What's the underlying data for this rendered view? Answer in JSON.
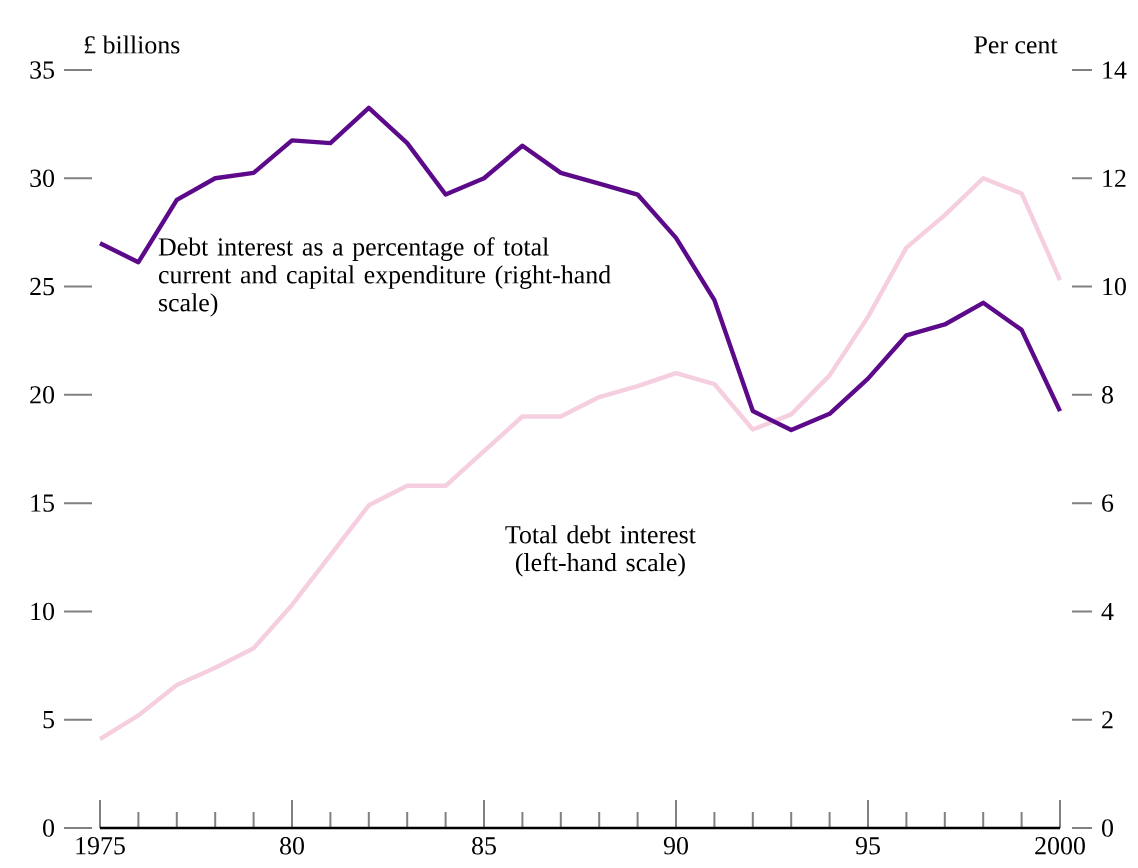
{
  "chart_data": {
    "type": "line",
    "ylabel": "£ billions",
    "y2label": "Per cent",
    "x": [
      1975,
      1976,
      1977,
      1978,
      1979,
      1980,
      1981,
      1982,
      1983,
      1984,
      1985,
      1986,
      1987,
      1988,
      1989,
      1990,
      1991,
      1992,
      1993,
      1994,
      1995,
      1996,
      1997,
      1998,
      1999,
      2000
    ],
    "series": [
      {
        "name": "Total debt interest (left-hand scale)",
        "color": "#f5cfe0",
        "values": [
          4.1,
          5.2,
          6.6,
          7.4,
          8.3,
          10.3,
          12.6,
          14.9,
          15.8,
          15.8,
          17.4,
          19.0,
          19.0,
          19.9,
          20.4,
          21.0,
          20.5,
          18.4,
          19.1,
          20.9,
          23.6,
          26.8,
          28.3,
          30.0,
          29.3,
          25.3
        ]
      },
      {
        "name": "Debt interest as a percentage of total current and capital expenditure (right-hand scale)",
        "color": "#5c0a8a",
        "axis": "y2",
        "values": [
          10.8,
          10.45,
          11.6,
          12.0,
          12.1,
          12.7,
          12.65,
          13.3,
          12.65,
          11.7,
          12.0,
          12.6,
          12.1,
          11.9,
          11.7,
          10.9,
          9.75,
          7.7,
          7.35,
          7.65,
          8.3,
          9.1,
          9.3,
          9.7,
          9.2,
          7.7
        ]
      }
    ],
    "xlim": [
      1975,
      2000
    ],
    "xticks": [
      1975,
      {
        "value": 1976,
        "label": null
      },
      {
        "value": 1977,
        "label": null
      },
      {
        "value": 1978,
        "label": null
      },
      {
        "value": 1979,
        "label": null
      },
      {
        "value": 1980,
        "label": "80"
      },
      {
        "value": 1981,
        "label": null
      },
      {
        "value": 1982,
        "label": null
      },
      {
        "value": 1983,
        "label": null
      },
      {
        "value": 1984,
        "label": null
      },
      {
        "value": 1985,
        "label": "85"
      },
      {
        "value": 1986,
        "label": null
      },
      {
        "value": 1987,
        "label": null
      },
      {
        "value": 1988,
        "label": null
      },
      {
        "value": 1989,
        "label": null
      },
      {
        "value": 1990,
        "label": "90"
      },
      {
        "value": 1991,
        "label": null
      },
      {
        "value": 1992,
        "label": null
      },
      {
        "value": 1993,
        "label": null
      },
      {
        "value": 1994,
        "label": null
      },
      {
        "value": 1995,
        "label": "95"
      },
      {
        "value": 1996,
        "label": null
      },
      {
        "value": 1997,
        "label": null
      },
      {
        "value": 1998,
        "label": null
      },
      {
        "value": 1999,
        "label": null
      },
      2000
    ],
    "ylim": [
      0,
      35
    ],
    "yticks": [
      0,
      5,
      10,
      15,
      20,
      25,
      30,
      35
    ],
    "y2lim": [
      0,
      14
    ],
    "y2ticks": [
      0,
      2,
      4,
      6,
      8,
      10,
      12,
      14
    ]
  }
}
